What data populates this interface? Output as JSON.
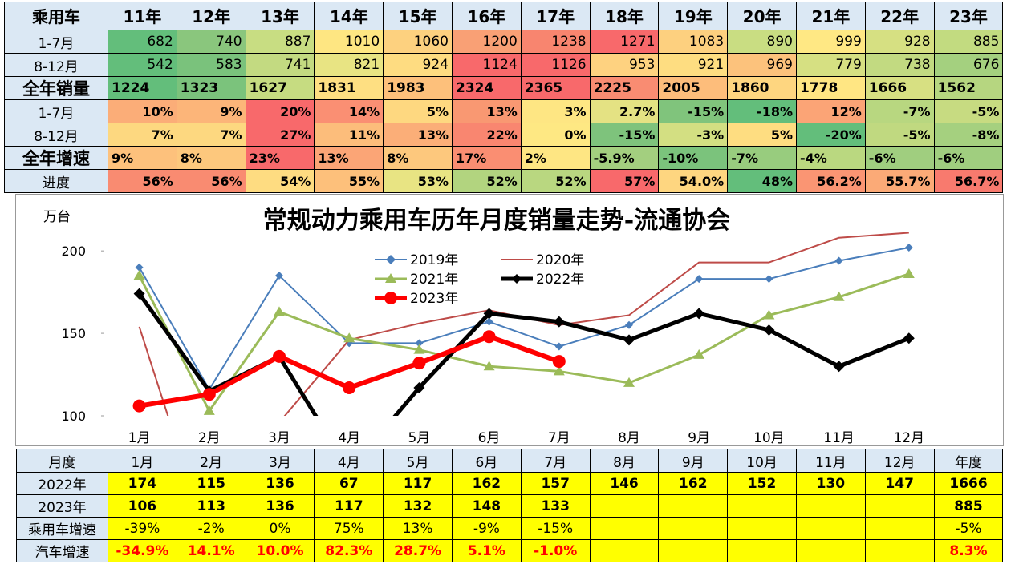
{
  "top_table": {
    "header": [
      "乘用车",
      "11年",
      "12年",
      "13年",
      "14年",
      "15年",
      "16年",
      "17年",
      "18年",
      "19年",
      "20年",
      "21年",
      "22年",
      "23年"
    ],
    "rows": [
      {
        "label": "1-7月",
        "cells": [
          "682",
          "740",
          "887",
          "1010",
          "1060",
          "1200",
          "1238",
          "1271",
          "1083",
          "890",
          "999",
          "928",
          "885"
        ],
        "colors": [
          "#63be7b",
          "#8ac67d",
          "#c8dd82",
          "#fee682",
          "#fdd17f",
          "#f9a075",
          "#f8856f",
          "#f8696b",
          "#fdd07f",
          "#c9dd82",
          "#ffe884",
          "#d6e082",
          "#c2db80"
        ]
      },
      {
        "label": "8-12月",
        "cells": [
          "542",
          "583",
          "741",
          "821",
          "924",
          "1124",
          "1126",
          "953",
          "921",
          "969",
          "779",
          "738",
          "676"
        ],
        "colors": [
          "#63be7b",
          "#7ac27c",
          "#c3da81",
          "#e8e483",
          "#fedc81",
          "#f8696b",
          "#f8696b",
          "#fed280",
          "#fedd81",
          "#fcc27c",
          "#d6e082",
          "#c2da81",
          "#a4d07f"
        ]
      },
      {
        "label": "全年销量",
        "cells": [
          "1224",
          "1323",
          "1627",
          "1831",
          "1983",
          "2324",
          "2365",
          "2225",
          "2005",
          "1860",
          "1778",
          "1666",
          "1562"
        ],
        "colors": [
          "#63be7b",
          "#7bc37c",
          "#c6dc81",
          "#fedf82",
          "#fdc07b",
          "#f8696b",
          "#f8696b",
          "#f98c72",
          "#fdbd7b",
          "#fed680",
          "#ffe683",
          "#d7e082",
          "#b6d680"
        ]
      },
      {
        "label": "1-7月",
        "cells": [
          "10%",
          "9%",
          "20%",
          "14%",
          "5%",
          "13%",
          "3%",
          "2.7%",
          "-15%",
          "-18%",
          "12%",
          "-7%",
          "-5%"
        ],
        "colors": [
          "#fbad78",
          "#fcb579",
          "#f8696b",
          "#fa8f73",
          "#fed880",
          "#f99872",
          "#fee683",
          "#e4e283",
          "#80c47c",
          "#63be7b",
          "#fba476",
          "#b8d780",
          "#c7db81"
        ]
      },
      {
        "label": "8-12月",
        "cells": [
          "7%",
          "7%",
          "27%",
          "11%",
          "13%",
          "22%",
          "0%",
          "-15%",
          "-3%",
          "5%",
          "-20%",
          "-5%",
          "-8%"
        ],
        "colors": [
          "#fdd880",
          "#fdd880",
          "#f8696b",
          "#fcbd7b",
          "#fbae78",
          "#f98670",
          "#fee883",
          "#7ec37c",
          "#d3df82",
          "#fedd81",
          "#63be7b",
          "#c0d980",
          "#a5d07f"
        ]
      },
      {
        "label": "全年增速",
        "cells": [
          "9%",
          "8%",
          "23%",
          "13%",
          "8%",
          "17%",
          "2%",
          "-5.9%",
          "-10%",
          "-7%",
          "-4%",
          "-6%",
          "-6%"
        ],
        "colors": [
          "#fdc17c",
          "#fdc87d",
          "#f8696b",
          "#fba576",
          "#fdc87d",
          "#fa8e72",
          "#fee683",
          "#a3cf7f",
          "#7bc37c",
          "#98cc7e",
          "#bad880",
          "#a0ce7f",
          "#a0ce7f"
        ]
      },
      {
        "label": "进度",
        "cells": [
          "56%",
          "56%",
          "54%",
          "55%",
          "53%",
          "52%",
          "52%",
          "57%",
          "54.0%",
          "48%",
          "56.2%",
          "55.7%",
          "56.7%"
        ],
        "colors": [
          "#f98b71",
          "#f98b71",
          "#fedc81",
          "#fdc07b",
          "#e8e483",
          "#b2d47f",
          "#b9d780",
          "#f8696b",
          "#fed680",
          "#63be7b",
          "#fa9573",
          "#fbaa77",
          "#f87a6e"
        ]
      }
    ]
  },
  "chart_data": {
    "type": "line",
    "title": "常规动力乘用车历年月度销量走势-流通协会",
    "y_label": "万台",
    "categories": [
      "1月",
      "2月",
      "3月",
      "4月",
      "5月",
      "6月",
      "7月",
      "8月",
      "9月",
      "10月",
      "11月",
      "12月"
    ],
    "ylim": [
      100,
      220
    ],
    "yticks": [
      100,
      150,
      200
    ],
    "grid": false,
    "series": [
      {
        "name": "2019年",
        "color": "#4a7ebb",
        "marker": "diamond",
        "values": [
          190,
          116,
          185,
          144,
          144,
          157,
          142,
          155,
          183,
          183,
          194,
          202
        ]
      },
      {
        "name": "2020年",
        "color": "#be4b48",
        "marker": "none",
        "values": [
          154,
          22,
          96,
          146,
          156,
          164,
          155,
          161,
          193,
          193,
          208,
          211
        ]
      },
      {
        "name": "2021年",
        "color": "#9bbb59",
        "marker": "triangle",
        "values": [
          185,
          103,
          163,
          147,
          140,
          130,
          127,
          120,
          137,
          161,
          172,
          186
        ]
      },
      {
        "name": "2022年",
        "color": "#000000",
        "marker": "diamond",
        "values": [
          174,
          115,
          136,
          67,
          117,
          162,
          157,
          146,
          162,
          152,
          130,
          147
        ]
      },
      {
        "name": "2023年",
        "color": "#ff0000",
        "marker": "circle",
        "values": [
          106,
          113,
          136,
          117,
          132,
          148,
          133,
          null,
          null,
          null,
          null,
          null
        ]
      }
    ]
  },
  "bottom_table": {
    "header": [
      "月度",
      "1月",
      "2月",
      "3月",
      "4月",
      "5月",
      "6月",
      "7月",
      "8月",
      "9月",
      "10月",
      "11月",
      "12月",
      "年度"
    ],
    "rows": [
      {
        "label": "2022年",
        "cells": [
          "174",
          "115",
          "136",
          "67",
          "117",
          "162",
          "157",
          "146",
          "162",
          "152",
          "130",
          "147",
          "1666"
        ]
      },
      {
        "label": "2023年",
        "cells": [
          "106",
          "113",
          "136",
          "117",
          "132",
          "148",
          "133",
          null,
          null,
          null,
          null,
          null,
          "885"
        ]
      },
      {
        "label": "乘用车增速",
        "cells": [
          "-39%",
          "-2%",
          "0%",
          "75%",
          "13%",
          "-9%",
          "-15%",
          null,
          null,
          null,
          null,
          null,
          "-5%"
        ]
      },
      {
        "label": "汽车增速",
        "cells": [
          "-34.9%",
          "14.1%",
          "10.0%",
          "82.3%",
          "28.7%",
          "5.1%",
          "-1.0%",
          null,
          null,
          null,
          null,
          null,
          "8.3%"
        ]
      }
    ]
  }
}
